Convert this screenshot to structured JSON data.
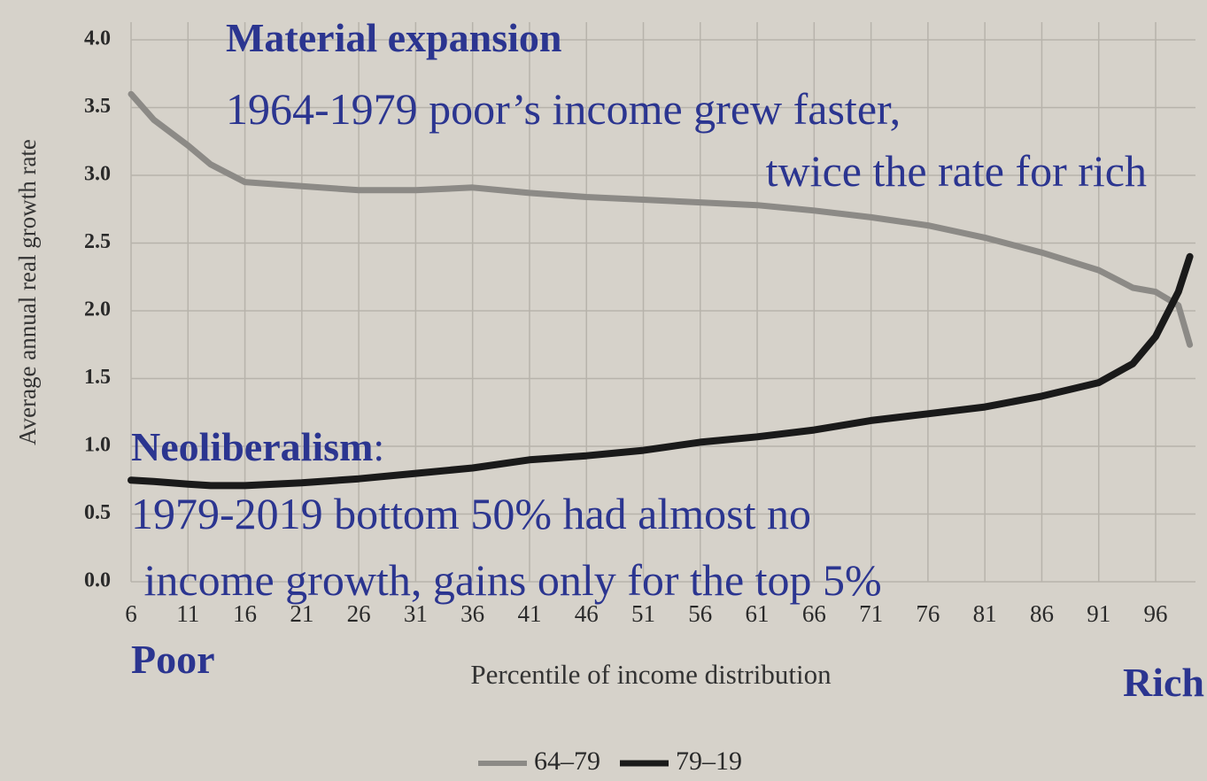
{
  "chart_data": {
    "type": "line",
    "x_label": "Percentile of income distribution",
    "y_label": "Average annual real growth rate",
    "x": [
      6,
      8,
      11,
      13,
      16,
      21,
      26,
      31,
      36,
      41,
      46,
      51,
      56,
      61,
      66,
      71,
      76,
      81,
      86,
      91,
      94,
      96,
      98,
      99
    ],
    "series": [
      {
        "name": "64–79",
        "color": "#8c8a86",
        "values": [
          3.6,
          3.41,
          3.22,
          3.08,
          2.95,
          2.92,
          2.89,
          2.89,
          2.91,
          2.87,
          2.84,
          2.82,
          2.8,
          2.78,
          2.74,
          2.69,
          2.63,
          2.54,
          2.43,
          2.3,
          2.17,
          2.14,
          2.04,
          1.75
        ]
      },
      {
        "name": "79–19",
        "color": "#1a1a1a",
        "values": [
          0.75,
          0.74,
          0.72,
          0.71,
          0.71,
          0.73,
          0.76,
          0.8,
          0.84,
          0.9,
          0.93,
          0.97,
          1.03,
          1.07,
          1.12,
          1.19,
          1.24,
          1.29,
          1.37,
          1.47,
          1.61,
          1.81,
          2.14,
          2.4
        ]
      }
    ],
    "xlim": [
      6,
      99.5
    ],
    "ylim": [
      0,
      4
    ],
    "xticks": [
      6,
      11,
      16,
      21,
      26,
      31,
      36,
      41,
      46,
      51,
      56,
      61,
      66,
      71,
      76,
      81,
      86,
      91,
      96
    ],
    "yticks": [
      {
        "value": 0,
        "label": "0.0"
      },
      0.5,
      {
        "value": 1,
        "label": "1.0"
      },
      1.5,
      {
        "value": 2,
        "label": "2.0"
      },
      2.5,
      {
        "value": 3,
        "label": "3.0"
      },
      3.5,
      {
        "value": 4,
        "label": "4.0"
      }
    ],
    "grid": true,
    "annotations": {
      "top_title": "Material expansion",
      "top_line1": "1964-1979 poor’s income grew faster,",
      "top_line2": "twice the rate for rich",
      "bottom_title": "Neoliberalism",
      "bottom_title_suffix": ":",
      "bottom_line1": "1979-2019 bottom 50% had almost no",
      "bottom_line2": " income growth, gains only for the top 5%",
      "left_label": "Poor",
      "right_label": "Rich"
    }
  }
}
